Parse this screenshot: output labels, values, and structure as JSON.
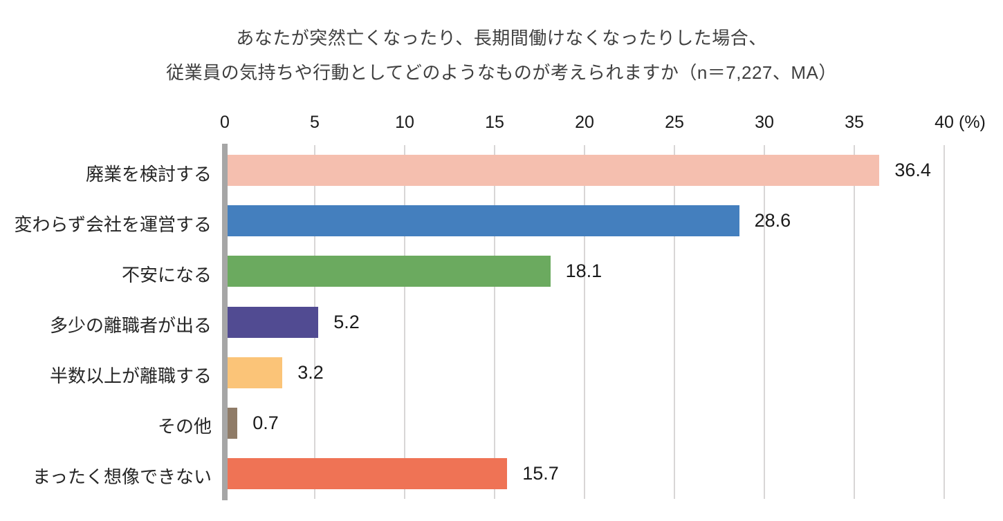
{
  "chart_data": {
    "type": "bar",
    "orientation": "horizontal",
    "title_line1": "あなたが突然亡くなったり、長期間働けなくなったりした場合、",
    "title_line2": "従業員の気持ちや行動としてどのようなものが考えられますか（n＝7,227、MA）",
    "categories": [
      "廃業を検討する",
      "変わらず会社を運営する",
      "不安になる",
      "多少の離職者が出る",
      "半数以上が離職する",
      "その他",
      "まったく想像できない"
    ],
    "values": [
      36.4,
      28.6,
      18.1,
      5.2,
      3.2,
      0.7,
      15.7
    ],
    "value_labels": [
      "36.4",
      "28.6",
      "18.1",
      "5.2",
      "3.2",
      "0.7",
      "15.7"
    ],
    "bar_colors": [
      "#F5BFAF",
      "#447FBE",
      "#6BAA5F",
      "#514B92",
      "#FBC478",
      "#8F7B67",
      "#EF7355"
    ],
    "xlim": [
      0,
      40
    ],
    "x_ticks": [
      "0",
      "5",
      "10",
      "15",
      "20",
      "25",
      "30",
      "35",
      "40"
    ],
    "x_unit": "(%)",
    "grid": true,
    "legend": "none",
    "colors": {
      "axis_line": "#A6A6A6",
      "gridline": "#D8D6D6",
      "title_text": "#3F3F3F",
      "label_text": "#262626",
      "value_text": "#1A1A1A",
      "background": "#FFFFFF"
    }
  }
}
